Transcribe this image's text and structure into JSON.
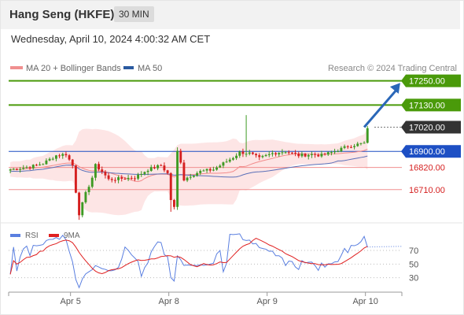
{
  "header": {
    "title": "Hang Seng (HKFE)",
    "interval": "30 MIN"
  },
  "datetime": "Wednesday, April 10, 2024 4:00:32 AM CET",
  "source": "Research © 2024 Trading Central",
  "colors": {
    "resistance": "#4a9a0a",
    "support": "#f08f8f",
    "pivot": "#1d4fc4",
    "last": "#333333",
    "up": "#3e9a23",
    "down": "#d51f1f",
    "bands": "#fde0e0",
    "ma20": "#f28c8c",
    "ma50": "#5a6fb8",
    "rsi": "#5a7fe0",
    "rsi_ma": "#e02020",
    "arrow": "#2a67b8"
  },
  "chart_data": [
    {
      "type": "candlestick",
      "y_range": [
        16545,
        17280
      ],
      "x_ticks": [
        {
          "label": "Apr 5",
          "index": 16
        },
        {
          "label": "Apr 8",
          "index": 46
        },
        {
          "label": "Apr 9",
          "index": 76
        },
        {
          "label": "Apr 10",
          "index": 106
        }
      ],
      "legend": [
        {
          "label": "MA 20 + Bollinger Bands",
          "color": "#f08f8f"
        },
        {
          "label": "MA 50",
          "color": "#2a5aa0"
        }
      ],
      "levels": [
        {
          "label": "17250.00",
          "value": 17250,
          "kind": "resistance"
        },
        {
          "label": "17130.00",
          "value": 17130,
          "kind": "resistance"
        },
        {
          "label": "17020.00",
          "value": 17020,
          "kind": "last"
        },
        {
          "label": "16900.00",
          "value": 16900,
          "kind": "pivot"
        },
        {
          "label": "16820.00",
          "value": 16820,
          "kind": "support"
        },
        {
          "label": "16710.00",
          "value": 16710,
          "kind": "support"
        }
      ],
      "forecast_arrow": {
        "from_index": 108,
        "from_value": 17020,
        "to_index": 119,
        "to_value": 17240
      }
    },
    {
      "type": "line",
      "name": "RSI",
      "legend": [
        {
          "label": "RSI",
          "color": "#5a7fe0"
        },
        {
          "label": "9MA",
          "color": "#e02020"
        }
      ],
      "y_range": [
        10,
        85
      ],
      "y_ticks": [
        70,
        50,
        30
      ]
    }
  ]
}
